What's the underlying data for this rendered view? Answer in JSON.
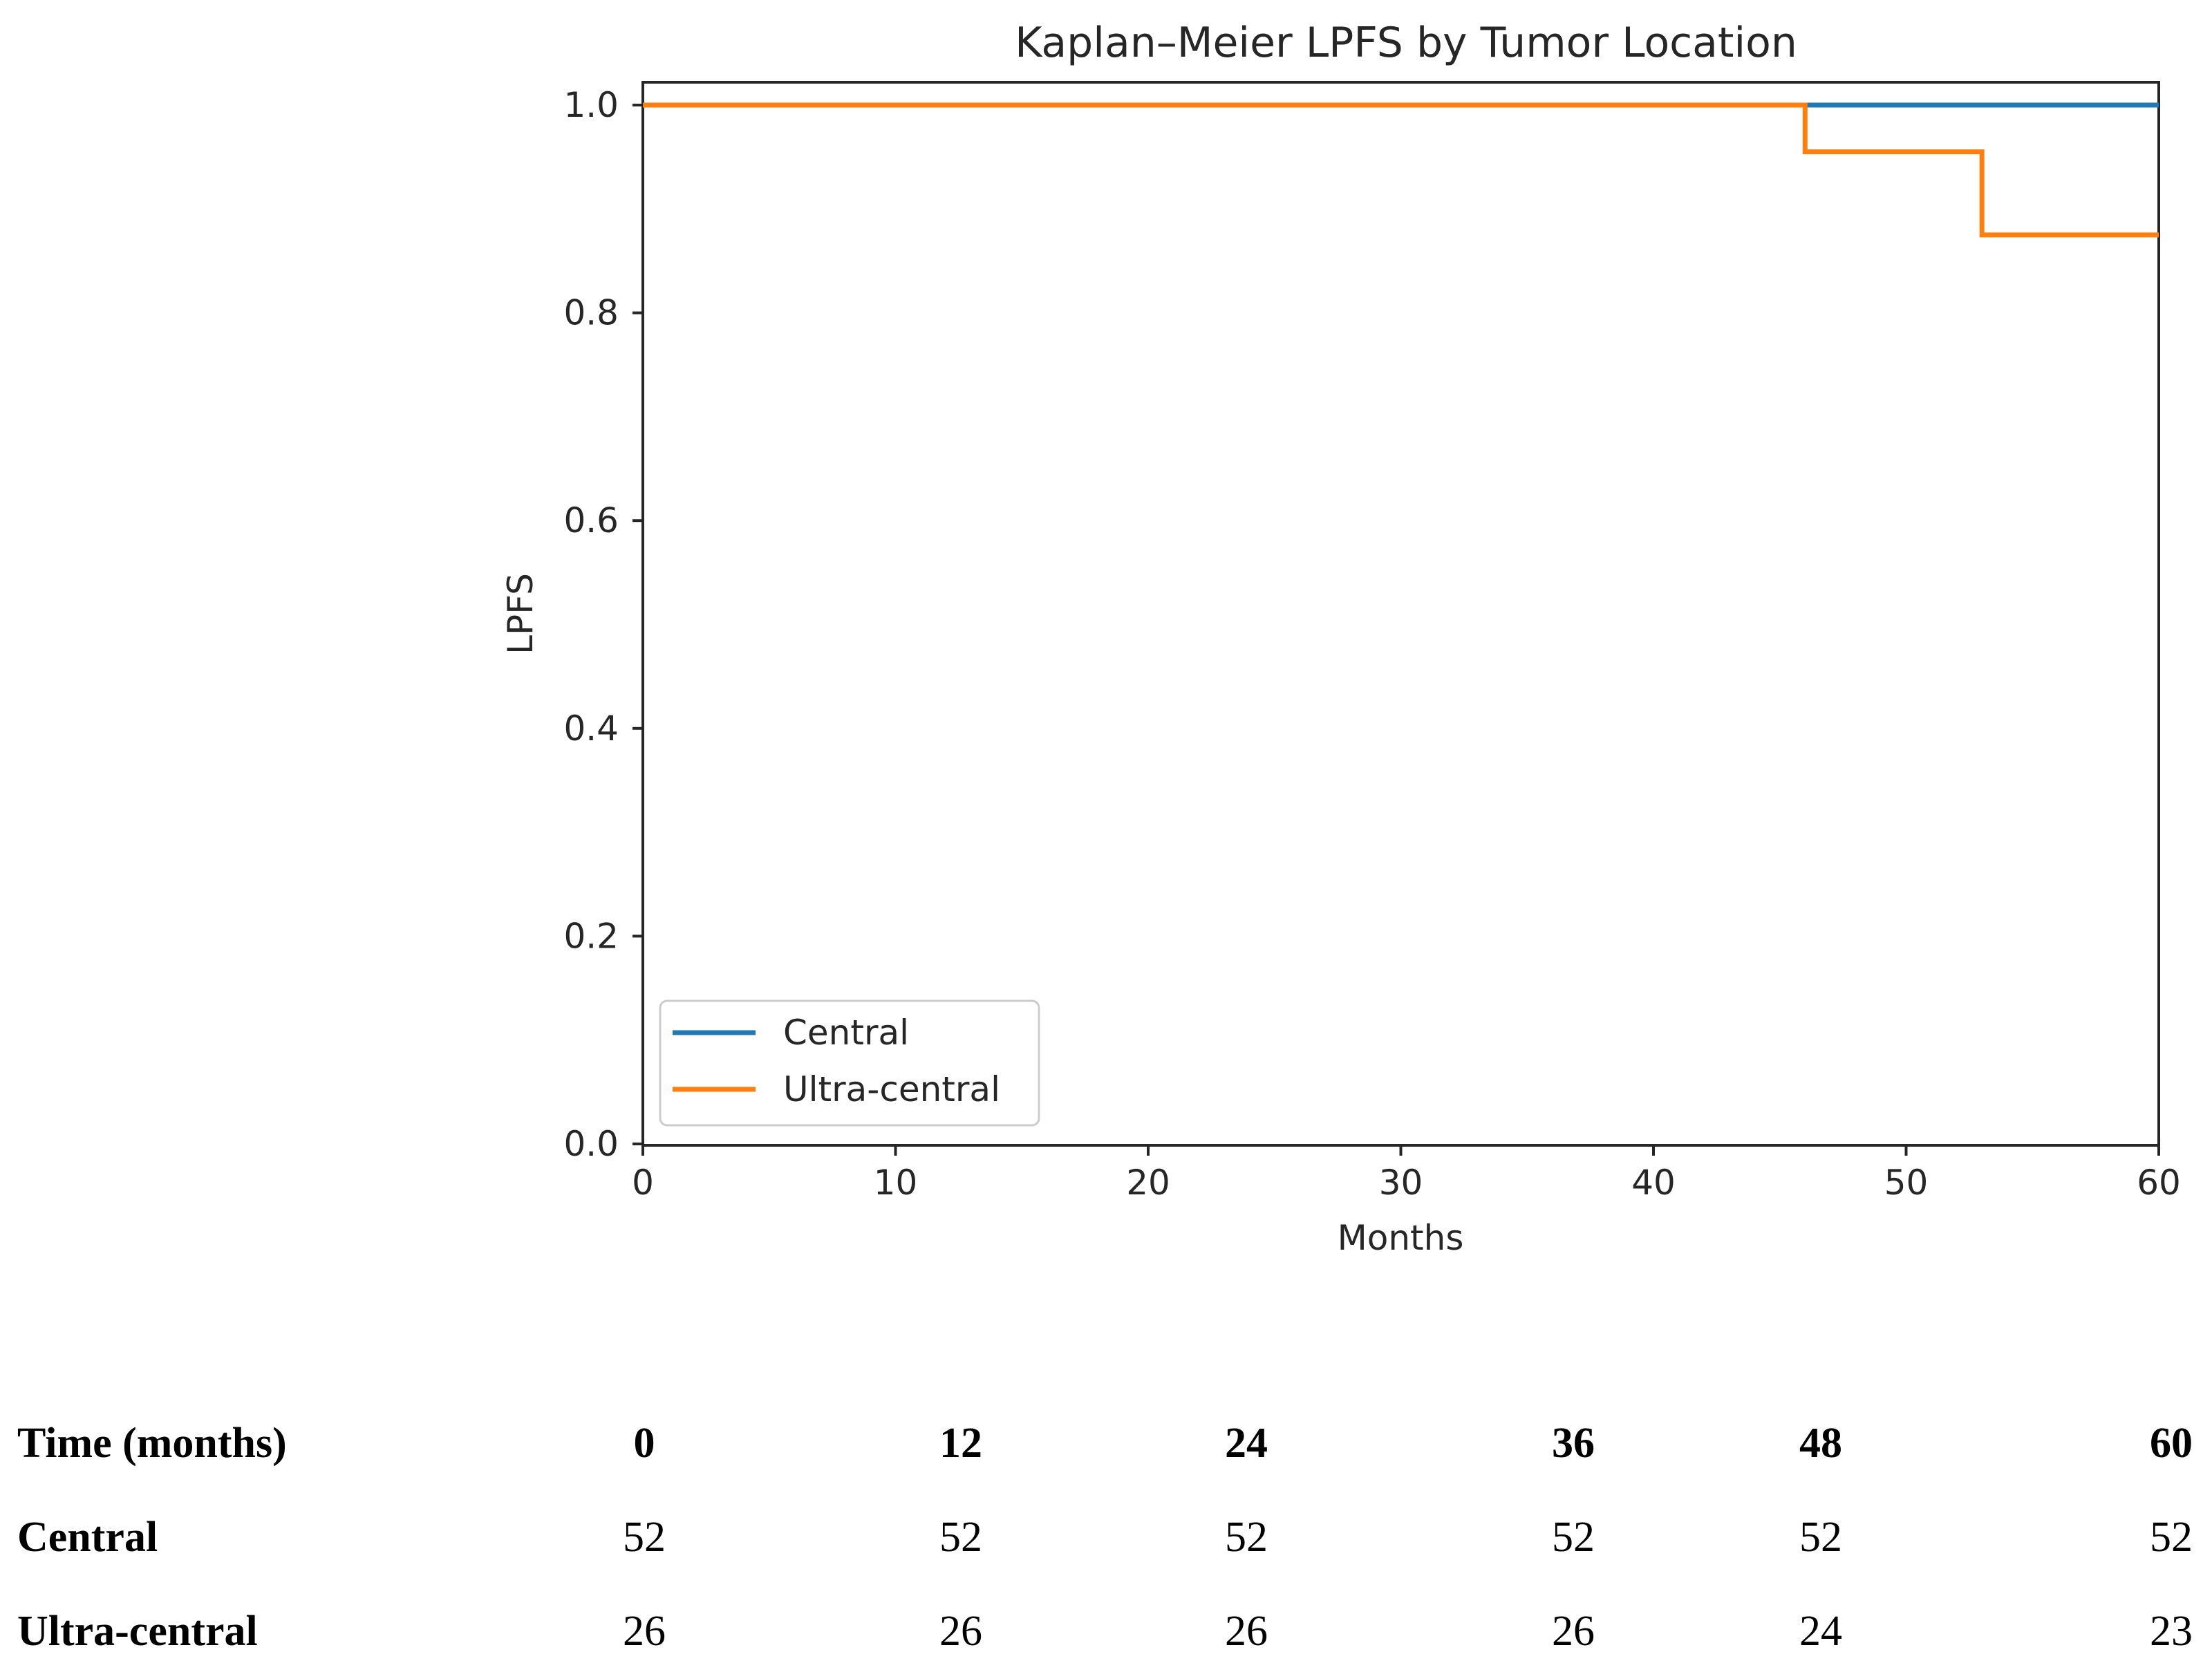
{
  "chart_data": {
    "type": "line",
    "title": "Kaplan–Meier LPFS by Tumor Location",
    "xlabel": "Months",
    "ylabel": "LPFS",
    "xlim": [
      0,
      60
    ],
    "ylim": [
      0,
      1.0
    ],
    "xticks": [
      0,
      10,
      20,
      30,
      40,
      50,
      60
    ],
    "yticks": [
      0.0,
      0.2,
      0.4,
      0.6,
      0.8,
      1.0
    ],
    "xtick_labels": [
      "0",
      "10",
      "20",
      "30",
      "40",
      "50",
      "60"
    ],
    "ytick_labels": [
      "0.0",
      "0.2",
      "0.4",
      "0.6",
      "0.8",
      "1.0"
    ],
    "step": "post",
    "grid": false,
    "legend_position": "lower-left",
    "series": [
      {
        "name": "Central",
        "color": "#1f77b4",
        "x": [
          0,
          60
        ],
        "y": [
          1.0,
          1.0
        ]
      },
      {
        "name": "Ultra-central",
        "color": "#ff7f0e",
        "x": [
          0,
          46,
          53,
          60
        ],
        "y": [
          1.0,
          0.955,
          0.875,
          0.875
        ]
      }
    ]
  },
  "risk_table": {
    "header_label": "Time (months)",
    "times": [
      "0",
      "12",
      "24",
      "36",
      "48",
      "60"
    ],
    "rows": [
      {
        "label": "Central",
        "values": [
          "52",
          "52",
          "52",
          "52",
          "52",
          "52"
        ]
      },
      {
        "label": "Ultra-central",
        "values": [
          "26",
          "26",
          "26",
          "26",
          "24",
          "23"
        ]
      }
    ]
  }
}
